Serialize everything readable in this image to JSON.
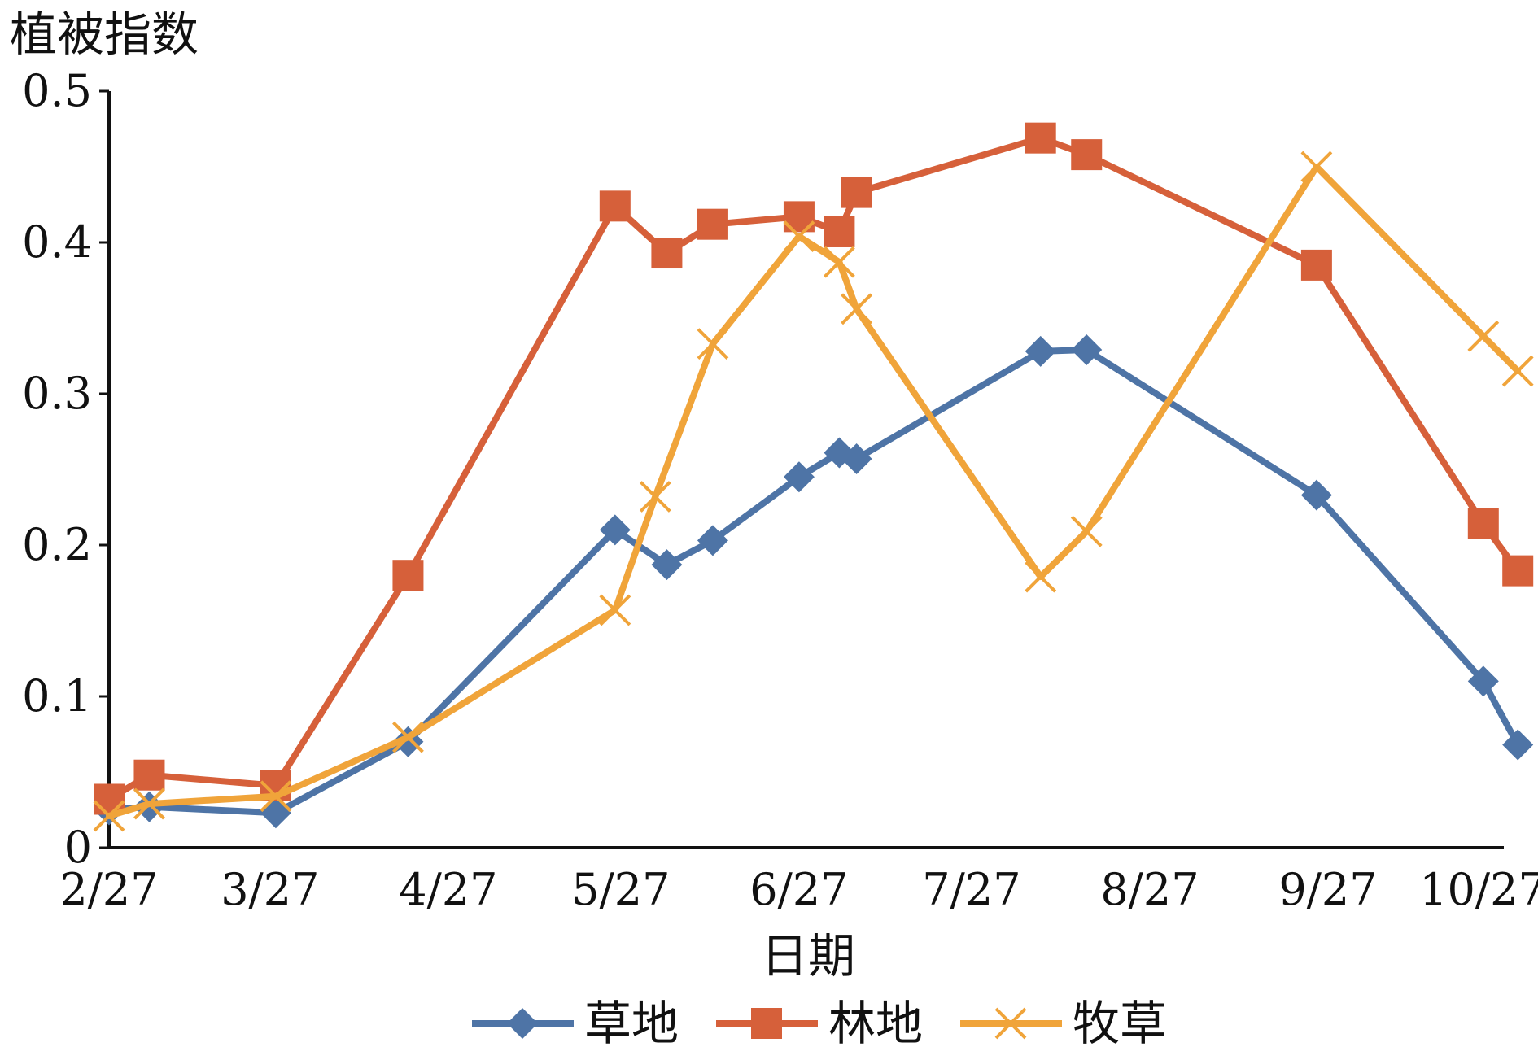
{
  "chart_data": {
    "type": "line",
    "ylabel": "植被指数",
    "xlabel": "日期",
    "ylim": [
      0,
      0.5
    ],
    "yticks": [
      "0",
      "0.1",
      "0.2",
      "0.3",
      "0.4",
      "0.5"
    ],
    "xlim": [
      "2/27",
      "10/27"
    ],
    "xticks": [
      "2/27",
      "3/27",
      "4/27",
      "5/27",
      "6/27",
      "7/27",
      "8/27",
      "9/27",
      "10/27"
    ],
    "legend_position": "bottom",
    "grid": false,
    "series": [
      {
        "name": "草地",
        "color": "#4e74a6",
        "marker": "diamond",
        "points": [
          [
            "2/27",
            0.025
          ],
          [
            "3/6",
            0.027
          ],
          [
            "3/28",
            0.023
          ],
          [
            "4/20",
            0.07
          ],
          [
            "5/26",
            0.21
          ],
          [
            "6/4",
            0.187
          ],
          [
            "6/12",
            0.203
          ],
          [
            "6/27",
            0.245
          ],
          [
            "7/4",
            0.261
          ],
          [
            "7/7",
            0.257
          ],
          [
            "8/8",
            0.328
          ],
          [
            "8/16",
            0.329
          ],
          [
            "9/25",
            0.233
          ],
          [
            "10/24",
            0.11
          ],
          [
            "10/30",
            0.068
          ]
        ]
      },
      {
        "name": "林地",
        "color": "#d6603a",
        "marker": "square",
        "points": [
          [
            "2/27",
            0.032
          ],
          [
            "3/6",
            0.048
          ],
          [
            "3/28",
            0.041
          ],
          [
            "4/20",
            0.18
          ],
          [
            "5/26",
            0.424
          ],
          [
            "6/4",
            0.393
          ],
          [
            "6/12",
            0.412
          ],
          [
            "6/27",
            0.417
          ],
          [
            "7/4",
            0.407
          ],
          [
            "7/7",
            0.433
          ],
          [
            "8/8",
            0.469
          ],
          [
            "8/16",
            0.458
          ],
          [
            "9/25",
            0.385
          ],
          [
            "10/24",
            0.214
          ],
          [
            "10/30",
            0.183
          ]
        ]
      },
      {
        "name": "牧草",
        "color": "#f0a43a",
        "marker": "x",
        "points": [
          [
            "2/27",
            0.021
          ],
          [
            "3/6",
            0.029
          ],
          [
            "3/28",
            0.034
          ],
          [
            "4/20",
            0.073
          ],
          [
            "5/26",
            0.157
          ],
          [
            "6/2",
            0.232
          ],
          [
            "6/12",
            0.333
          ],
          [
            "6/27",
            0.404
          ],
          [
            "7/4",
            0.387
          ],
          [
            "7/7",
            0.356
          ],
          [
            "8/8",
            0.179
          ],
          [
            "8/16",
            0.209
          ],
          [
            "9/25",
            0.45
          ],
          [
            "10/24",
            0.338
          ],
          [
            "10/30",
            0.315
          ]
        ]
      }
    ]
  }
}
